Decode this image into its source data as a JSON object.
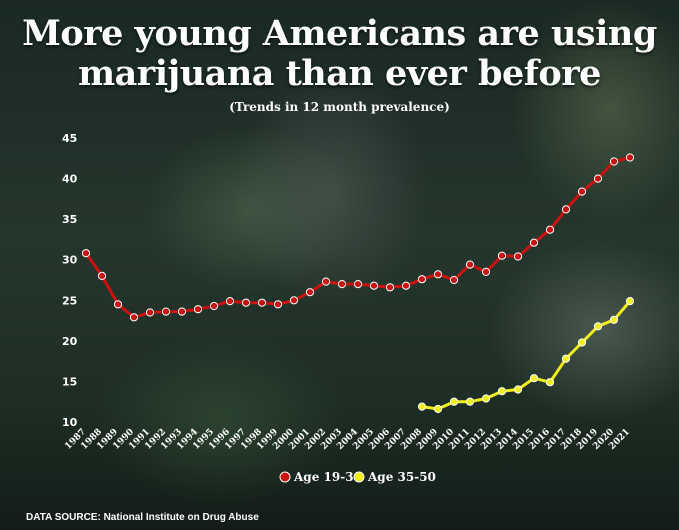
{
  "header": {
    "title_line1": "More young Americans are using",
    "title_line2": "marijuana than ever before",
    "subtitle": "(Trends in 12 month prevalence)"
  },
  "footer": {
    "source": "DATA SOURCE: National Institute on Drug Abuse"
  },
  "colors": {
    "series_young": "#cc1111",
    "series_older": "#f2ee1c",
    "text": "#ffffff"
  },
  "chart_data": {
    "type": "line",
    "x": [
      1987,
      1988,
      1989,
      1990,
      1991,
      1992,
      1993,
      1994,
      1995,
      1996,
      1997,
      1998,
      1999,
      2000,
      2001,
      2002,
      2003,
      2004,
      2005,
      2006,
      2007,
      2008,
      2009,
      2010,
      2011,
      2012,
      2013,
      2014,
      2015,
      2016,
      2017,
      2018,
      2019,
      2020,
      2021
    ],
    "y_ticks": [
      10,
      15,
      20,
      25,
      30,
      35,
      40,
      45
    ],
    "ylim": [
      10,
      45
    ],
    "grid": false,
    "legend_position": "bottom-center",
    "series": [
      {
        "name": "Age 19-30",
        "color": "#cc1111",
        "values": [
          30.8,
          28.0,
          24.5,
          22.9,
          23.5,
          23.6,
          23.6,
          23.9,
          24.3,
          24.9,
          24.7,
          24.7,
          24.5,
          25.0,
          26.0,
          27.3,
          27.0,
          27.0,
          26.8,
          26.6,
          26.8,
          27.6,
          28.2,
          27.5,
          29.4,
          28.5,
          30.5,
          30.4,
          32.1,
          33.7,
          36.2,
          38.4,
          40.0,
          42.1,
          42.6
        ]
      },
      {
        "name": "Age 35-50",
        "color": "#f2ee1c",
        "values": [
          null,
          null,
          null,
          null,
          null,
          null,
          null,
          null,
          null,
          null,
          null,
          null,
          null,
          null,
          null,
          null,
          null,
          null,
          null,
          null,
          null,
          11.9,
          11.6,
          12.5,
          12.5,
          12.9,
          13.8,
          14.0,
          15.4,
          14.9,
          17.8,
          19.8,
          21.8,
          22.6,
          24.9
        ]
      }
    ]
  }
}
